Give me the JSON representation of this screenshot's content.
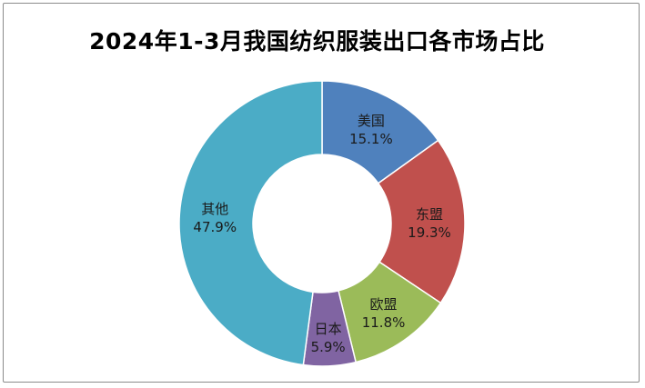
{
  "chart_data": {
    "type": "pie",
    "donut": true,
    "title": "2024年1-3月我国纺织服装出口各市场占比",
    "slices": [
      {
        "name": "美国",
        "value": 15.1,
        "label": "15.1%",
        "color": "#4f81bd"
      },
      {
        "name": "东盟",
        "value": 19.3,
        "label": "19.3%",
        "color": "#c0504d"
      },
      {
        "name": "欧盟",
        "value": 11.8,
        "label": "11.8%",
        "color": "#9bbb59"
      },
      {
        "name": "日本",
        "value": 5.9,
        "label": "5.9%",
        "color": "#8064a2"
      },
      {
        "name": "其他",
        "value": 47.9,
        "label": "47.9%",
        "color": "#4bacc6"
      }
    ],
    "start_angle_deg": 0,
    "direction": "clockwise",
    "legend": "none"
  }
}
